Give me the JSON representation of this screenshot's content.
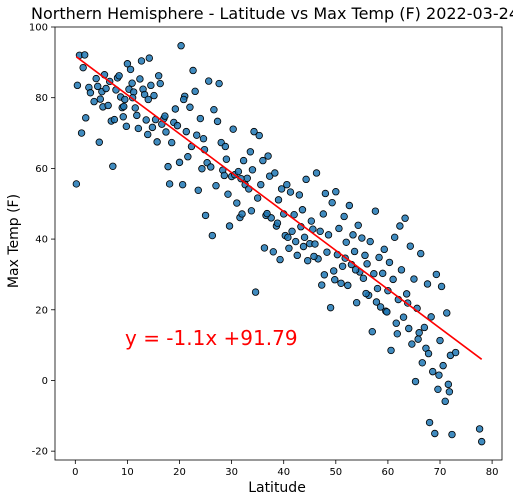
{
  "chart_data": {
    "type": "scatter",
    "title": "Northern Hemisphere - Latitude vs Max Temp (F) 2022-03-24",
    "xlabel": "Latitude",
    "ylabel": "Max Temp (F)",
    "xlim": [
      -3.9,
      81.9
    ],
    "ylim": [
      -22.5,
      100
    ],
    "xticks": [
      0,
      10,
      20,
      30,
      40,
      50,
      60,
      70,
      80
    ],
    "yticks": [
      -20,
      0,
      20,
      40,
      60,
      80,
      100
    ],
    "grid": false,
    "regression": {
      "equation": "y = -1.1x +91.79",
      "slope": -1.1,
      "intercept": 91.79,
      "x_range": [
        0.2,
        78
      ]
    },
    "colors": {
      "point_fill": "#1f77b4",
      "point_edge": "#000000",
      "line": "#ff0000",
      "annotation": "#ff0000"
    },
    "points": [
      [
        0.2,
        55.6
      ],
      [
        0.4,
        83.5
      ],
      [
        0.8,
        92.0
      ],
      [
        1.2,
        70.0
      ],
      [
        1.5,
        88.5
      ],
      [
        1.8,
        92.1
      ],
      [
        2.0,
        74.3
      ],
      [
        2.6,
        82.9
      ],
      [
        2.9,
        81.4
      ],
      [
        3.6,
        78.9
      ],
      [
        4.0,
        85.4
      ],
      [
        4.3,
        83.2
      ],
      [
        4.6,
        67.4
      ],
      [
        4.8,
        79.6
      ],
      [
        5.1,
        81.7
      ],
      [
        5.3,
        77.4
      ],
      [
        5.6,
        86.5
      ],
      [
        5.9,
        82.6
      ],
      [
        6.3,
        77.8
      ],
      [
        6.6,
        84.6
      ],
      [
        6.9,
        73.4
      ],
      [
        7.2,
        60.6
      ],
      [
        7.5,
        73.8
      ],
      [
        7.8,
        82.2
      ],
      [
        8.1,
        85.6
      ],
      [
        8.4,
        86.2
      ],
      [
        8.7,
        80.2
      ],
      [
        9.0,
        77.2
      ],
      [
        9.2,
        74.6
      ],
      [
        9.5,
        79.5
      ],
      [
        9.8,
        71.9
      ],
      [
        10.0,
        89.6
      ],
      [
        10.3,
        82.4
      ],
      [
        10.6,
        88.0
      ],
      [
        10.9,
        84.1
      ],
      [
        11.2,
        81.6
      ],
      [
        11.5,
        77.1
      ],
      [
        11.8,
        75.0
      ],
      [
        12.1,
        71.3
      ],
      [
        12.4,
        85.3
      ],
      [
        12.7,
        90.4
      ],
      [
        13.0,
        82.4
      ],
      [
        13.3,
        80.9
      ],
      [
        13.6,
        73.7
      ],
      [
        13.9,
        69.6
      ],
      [
        14.2,
        91.2
      ],
      [
        14.5,
        83.5
      ],
      [
        14.8,
        71.6
      ],
      [
        15.1,
        80.6
      ],
      [
        15.4,
        73.8
      ],
      [
        15.7,
        67.5
      ],
      [
        16.0,
        86.2
      ],
      [
        16.3,
        84.0
      ],
      [
        16.6,
        72.5
      ],
      [
        17.0,
        74.1
      ],
      [
        17.4,
        70.3
      ],
      [
        17.8,
        60.5
      ],
      [
        18.1,
        55.6
      ],
      [
        18.5,
        67.3
      ],
      [
        18.9,
        73.0
      ],
      [
        19.2,
        76.8
      ],
      [
        19.6,
        72.1
      ],
      [
        20.0,
        61.7
      ],
      [
        20.3,
        94.7
      ],
      [
        20.6,
        55.4
      ],
      [
        21.0,
        80.4
      ],
      [
        21.3,
        70.4
      ],
      [
        21.6,
        63.3
      ],
      [
        22.0,
        77.3
      ],
      [
        22.3,
        66.2
      ],
      [
        22.6,
        87.7
      ],
      [
        23.0,
        81.8
      ],
      [
        23.3,
        69.4
      ],
      [
        23.6,
        53.8
      ],
      [
        24.0,
        74.1
      ],
      [
        24.3,
        59.9
      ],
      [
        24.6,
        68.4
      ],
      [
        25.0,
        46.7
      ],
      [
        25.3,
        61.6
      ],
      [
        25.6,
        84.7
      ],
      [
        26.0,
        60.4
      ],
      [
        26.3,
        41.0
      ],
      [
        26.6,
        76.6
      ],
      [
        27.0,
        55.1
      ],
      [
        27.3,
        73.3
      ],
      [
        27.6,
        84.0
      ],
      [
        28.0,
        67.3
      ],
      [
        28.3,
        59.5
      ],
      [
        28.6,
        58.0
      ],
      [
        29.0,
        62.6
      ],
      [
        29.3,
        52.7
      ],
      [
        29.6,
        43.7
      ],
      [
        30.0,
        57.7
      ],
      [
        30.3,
        71.1
      ],
      [
        30.6,
        58.2
      ],
      [
        31.0,
        50.2
      ],
      [
        31.3,
        59.1
      ],
      [
        31.6,
        46.1
      ],
      [
        32.0,
        47.1
      ],
      [
        32.3,
        62.2
      ],
      [
        32.6,
        55.4
      ],
      [
        33.0,
        57.2
      ],
      [
        33.3,
        54.2
      ],
      [
        33.6,
        64.7
      ],
      [
        34.0,
        59.6
      ],
      [
        34.3,
        70.4
      ],
      [
        34.6,
        25.0
      ],
      [
        35.0,
        51.6
      ],
      [
        35.3,
        69.3
      ],
      [
        35.6,
        55.4
      ],
      [
        36.0,
        62.2
      ],
      [
        36.3,
        37.5
      ],
      [
        36.6,
        46.7
      ],
      [
        37.0,
        63.5
      ],
      [
        37.3,
        57.8
      ],
      [
        37.6,
        46.0
      ],
      [
        38.0,
        36.4
      ],
      [
        38.3,
        58.7
      ],
      [
        38.6,
        43.7
      ],
      [
        39.0,
        51.1
      ],
      [
        39.3,
        34.2
      ],
      [
        39.6,
        54.2
      ],
      [
        40.0,
        47.1
      ],
      [
        40.3,
        41.0
      ],
      [
        40.6,
        55.4
      ],
      [
        41.0,
        37.4
      ],
      [
        41.3,
        53.3
      ],
      [
        41.6,
        42.2
      ],
      [
        42.0,
        46.9
      ],
      [
        42.3,
        39.3
      ],
      [
        42.6,
        35.4
      ],
      [
        43.0,
        52.5
      ],
      [
        43.3,
        43.5
      ],
      [
        43.6,
        48.3
      ],
      [
        44.0,
        40.5
      ],
      [
        44.3,
        56.9
      ],
      [
        44.6,
        33.9
      ],
      [
        45.0,
        38.7
      ],
      [
        45.3,
        45.1
      ],
      [
        45.6,
        42.8
      ],
      [
        46.0,
        38.6
      ],
      [
        46.3,
        58.7
      ],
      [
        46.6,
        34.4
      ],
      [
        47.0,
        42.2
      ],
      [
        47.3,
        27.0
      ],
      [
        47.6,
        47.1
      ],
      [
        48.0,
        52.9
      ],
      [
        48.3,
        36.3
      ],
      [
        48.6,
        41.2
      ],
      [
        49.0,
        20.6
      ],
      [
        49.3,
        50.3
      ],
      [
        49.6,
        31.0
      ],
      [
        50.0,
        53.4
      ],
      [
        50.3,
        35.6
      ],
      [
        50.6,
        43.0
      ],
      [
        51.0,
        27.5
      ],
      [
        51.3,
        32.3
      ],
      [
        51.6,
        46.4
      ],
      [
        52.0,
        39.1
      ],
      [
        52.3,
        26.9
      ],
      [
        52.6,
        49.5
      ],
      [
        53.0,
        32.8
      ],
      [
        53.3,
        41.2
      ],
      [
        53.6,
        36.5
      ],
      [
        54.0,
        22.0
      ],
      [
        54.3,
        43.9
      ],
      [
        54.6,
        30.7
      ],
      [
        55.0,
        40.3
      ],
      [
        55.3,
        28.9
      ],
      [
        55.6,
        35.4
      ],
      [
        56.0,
        33.0
      ],
      [
        56.3,
        24.1
      ],
      [
        56.6,
        39.3
      ],
      [
        57.0,
        13.8
      ],
      [
        57.3,
        30.2
      ],
      [
        57.6,
        47.9
      ],
      [
        58.0,
        26.0
      ],
      [
        58.3,
        34.8
      ],
      [
        58.6,
        20.8
      ],
      [
        59.0,
        30.3
      ],
      [
        59.3,
        37.1
      ],
      [
        59.6,
        19.6
      ],
      [
        60.0,
        25.4
      ],
      [
        60.3,
        33.4
      ],
      [
        60.6,
        8.5
      ],
      [
        61.0,
        28.6
      ],
      [
        61.3,
        40.5
      ],
      [
        61.6,
        16.2
      ],
      [
        62.0,
        22.9
      ],
      [
        62.3,
        43.7
      ],
      [
        62.6,
        31.3
      ],
      [
        63.0,
        17.9
      ],
      [
        63.3,
        45.9
      ],
      [
        63.6,
        24.5
      ],
      [
        64.0,
        14.7
      ],
      [
        64.3,
        38.0
      ],
      [
        64.6,
        10.3
      ],
      [
        65.0,
        28.7
      ],
      [
        65.3,
        -0.3
      ],
      [
        65.6,
        20.4
      ],
      [
        66.0,
        13.5
      ],
      [
        66.3,
        35.9
      ],
      [
        66.6,
        5.0
      ],
      [
        67.0,
        15.0
      ],
      [
        67.3,
        9.1
      ],
      [
        67.6,
        27.3
      ],
      [
        68.0,
        -11.9
      ],
      [
        68.3,
        18.0
      ],
      [
        68.6,
        2.5
      ],
      [
        69.0,
        -15.0
      ],
      [
        69.3,
        30.0
      ],
      [
        69.6,
        -2.5
      ],
      [
        70.0,
        11.3
      ],
      [
        70.3,
        26.6
      ],
      [
        70.6,
        4.2
      ],
      [
        71.0,
        -5.9
      ],
      [
        71.3,
        19.1
      ],
      [
        71.6,
        -1.1
      ],
      [
        72.0,
        7.1
      ],
      [
        72.3,
        -15.3
      ],
      [
        73.0,
        7.9
      ],
      [
        77.6,
        -13.7
      ],
      [
        78.0,
        -17.3
      ],
      [
        9.3,
        77.5
      ],
      [
        11.0,
        80.0
      ],
      [
        14.0,
        79.5
      ],
      [
        17.2,
        74.8
      ],
      [
        20.8,
        79.5
      ],
      [
        24.8,
        65.3
      ],
      [
        28.8,
        66.2
      ],
      [
        31.8,
        57.1
      ],
      [
        33.8,
        48.0
      ],
      [
        36.8,
        47.2
      ],
      [
        38.8,
        44.5
      ],
      [
        40.8,
        40.5
      ],
      [
        43.8,
        37.9
      ],
      [
        45.8,
        35.1
      ],
      [
        47.8,
        29.9
      ],
      [
        49.8,
        28.5
      ],
      [
        51.8,
        34.6
      ],
      [
        53.8,
        31.3
      ],
      [
        55.8,
        24.6
      ],
      [
        57.8,
        22.2
      ],
      [
        59.8,
        19.4
      ],
      [
        61.8,
        13.2
      ],
      [
        63.8,
        21.9
      ],
      [
        65.8,
        11.7
      ],
      [
        67.8,
        7.6
      ],
      [
        69.8,
        1.5
      ],
      [
        71.8,
        -3.2
      ]
    ]
  }
}
